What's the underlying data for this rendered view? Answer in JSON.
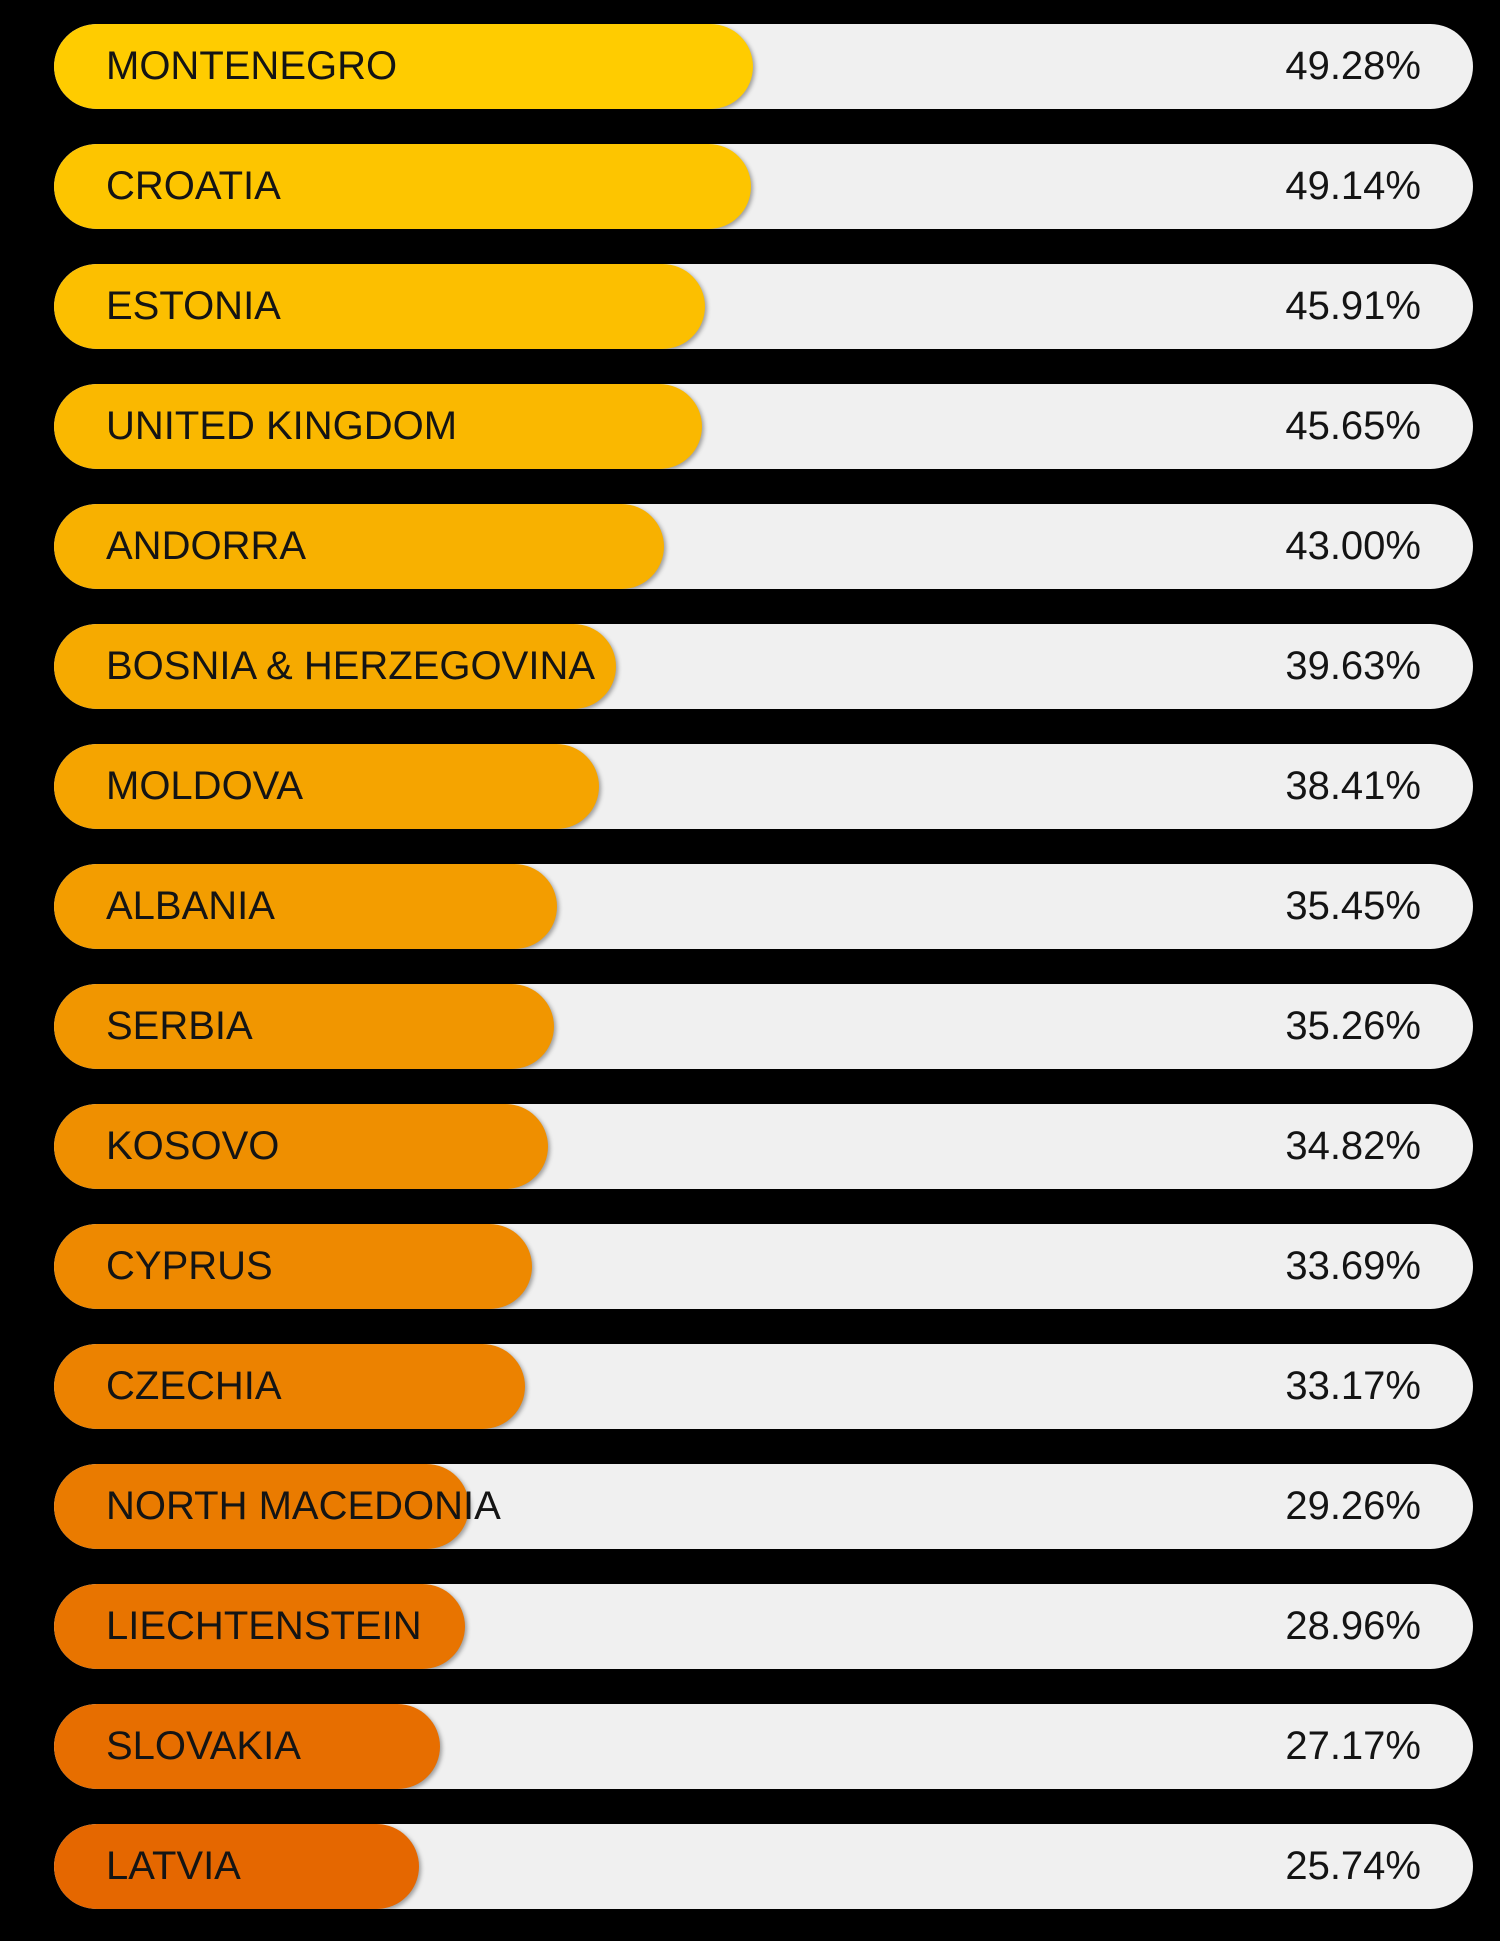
{
  "chart_data": {
    "type": "bar",
    "orientation": "horizontal",
    "title": "",
    "xlabel": "",
    "ylabel": "",
    "xlim": [
      0,
      100
    ],
    "grid": false,
    "legend": "none",
    "categories": [
      "MONTENEGRO",
      "CROATIA",
      "ESTONIA",
      "UNITED KINGDOM",
      "ANDORRA",
      "BOSNIA & HERZEGOVINA",
      "MOLDOVA",
      "ALBANIA",
      "SERBIA",
      "KOSOVO",
      "CYPRUS",
      "CZECHIA",
      "NORTH MACEDONIA",
      "LIECHTENSTEIN",
      "SLOVAKIA",
      "LATVIA"
    ],
    "values": [
      49.28,
      49.14,
      45.91,
      45.65,
      43.0,
      39.63,
      38.41,
      35.45,
      35.26,
      34.82,
      33.69,
      33.17,
      29.26,
      28.96,
      27.17,
      25.74
    ],
    "value_labels": [
      "49.28%",
      "49.14%",
      "45.91%",
      "45.65%",
      "43.00%",
      "39.63%",
      "38.41%",
      "35.45%",
      "35.26%",
      "34.82%",
      "33.69%",
      "33.17%",
      "29.26%",
      "28.96%",
      "27.17%",
      "25.74%"
    ],
    "colors": {
      "background": "#000000",
      "track": "#f0f0f0",
      "bar_high": "#ffcc00",
      "bar_low": "#e56700",
      "text": "#141414"
    }
  }
}
